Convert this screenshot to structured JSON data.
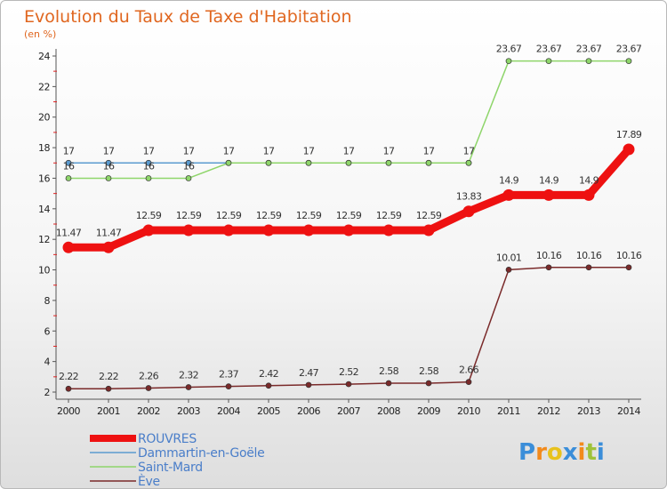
{
  "chart_data": {
    "type": "line",
    "title": "Evolution du Taux de Taxe d'Habitation",
    "unit_label": "(en %)",
    "x": [
      "2000",
      "2001",
      "2002",
      "2003",
      "2004",
      "2005",
      "2006",
      "2007",
      "2008",
      "2009",
      "2010",
      "2011",
      "2012",
      "2013",
      "2014"
    ],
    "ylim": [
      2,
      24
    ],
    "yticks": [
      2,
      4,
      6,
      8,
      10,
      12,
      14,
      16,
      18,
      20,
      22,
      24
    ],
    "grid": false,
    "legend_position": "bottom-left",
    "series": [
      {
        "name": "ROUVRES",
        "color": "#ee1111",
        "emphasis": true,
        "values": [
          11.47,
          11.47,
          12.59,
          12.59,
          12.59,
          12.59,
          12.59,
          12.59,
          12.59,
          12.59,
          13.83,
          14.9,
          14.9,
          14.9,
          17.89
        ],
        "labels": [
          "11.47",
          "11.47",
          "12.59",
          "12.59",
          "12.59",
          "12.59",
          "12.59",
          "12.59",
          "12.59",
          "12.59",
          "13.83",
          "14.9",
          "14.9",
          "14.9",
          "17.89"
        ]
      },
      {
        "name": "Dammartin-en-Goële",
        "color": "#5b9bd0",
        "emphasis": false,
        "values": [
          17,
          17,
          17,
          17,
          17,
          17,
          17,
          17,
          17,
          17,
          17,
          null,
          null,
          null,
          null
        ],
        "labels": [
          "17",
          "17",
          "17",
          "17",
          "",
          "",
          "",
          "",
          "",
          "",
          "",
          "",
          "",
          "",
          ""
        ]
      },
      {
        "name": "Saint-Mard",
        "color": "#8ed56a",
        "emphasis": false,
        "values": [
          16,
          16,
          16,
          16,
          17,
          17,
          17,
          17,
          17,
          17,
          17,
          23.67,
          23.67,
          23.67,
          23.67
        ],
        "labels": [
          "16",
          "16",
          "16",
          "16",
          "17",
          "17",
          "17",
          "17",
          "17",
          "17",
          "17",
          "23.67",
          "23.67",
          "23.67",
          "23.67"
        ]
      },
      {
        "name": "Ève",
        "color": "#7a2a2a",
        "emphasis": false,
        "values": [
          2.22,
          2.22,
          2.26,
          2.32,
          2.37,
          2.42,
          2.47,
          2.52,
          2.58,
          2.58,
          2.66,
          10.01,
          10.16,
          10.16,
          10.16
        ],
        "labels": [
          "2.22",
          "2.22",
          "2.26",
          "2.32",
          "2.37",
          "2.42",
          "2.47",
          "2.52",
          "2.58",
          "2.58",
          "2.66",
          "10.01",
          "10.16",
          "10.16",
          "10.16"
        ]
      }
    ]
  },
  "branding": {
    "logo_text": "Proxiti",
    "logo_colors": [
      "#3b8ed9",
      "#f28a1c",
      "#e8c21d",
      "#3b8ed9",
      "#f28a1c",
      "#9fc23a",
      "#3b8ed9"
    ]
  }
}
